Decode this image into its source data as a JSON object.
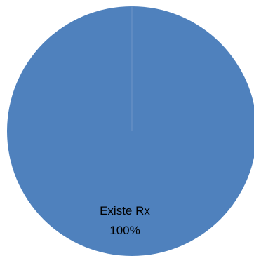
{
  "chart_data": {
    "type": "pie",
    "slices": [
      {
        "label": "Existe Rx",
        "value": 100,
        "percent_label": "100%",
        "color": "#4F81BD"
      }
    ]
  }
}
